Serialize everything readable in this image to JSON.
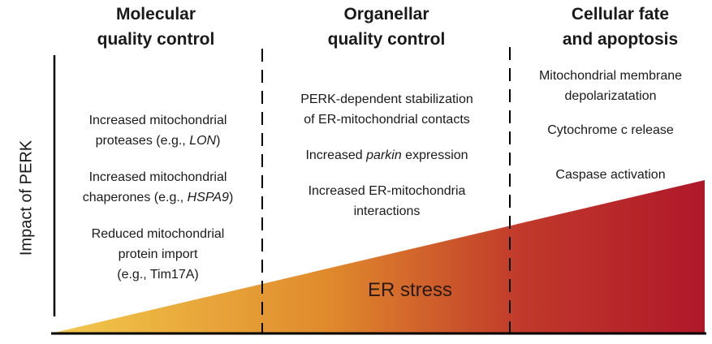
{
  "headers": {
    "molecular": [
      "Molecular",
      "quality control"
    ],
    "organellar": [
      "Organellar",
      "quality control"
    ],
    "cellular": [
      "Cellular fate",
      "and apoptosis"
    ]
  },
  "y_axis_label": "Impact of PERK",
  "wedge_label": "ER stress",
  "gradient_colors": [
    "#f2c94c",
    "#e08a2c",
    "#c0392b",
    "#b0182a"
  ],
  "molecular_items": [
    [
      "Increased mitochondrial",
      "proteases (e.g., ",
      "LON",
      ")"
    ],
    [
      "Increased mitochondrial",
      "chaperones (e.g., ",
      "HSPA9",
      ")"
    ],
    [
      "Reduced mitochondrial",
      "protein import",
      "(e.g., Tim17A)"
    ]
  ],
  "organellar_items": [
    [
      "PERK-dependent stabilization",
      "of ER-mitochondrial contacts"
    ],
    [
      "Increased ",
      "parkin",
      " expression"
    ],
    [
      "Increased ER-mitochondria",
      "interactions"
    ]
  ],
  "cellular_items": [
    [
      "Mitochondrial membrane",
      "depolarizatation"
    ],
    [
      "Cytochrome c release"
    ],
    [
      "Caspase activation"
    ]
  ]
}
